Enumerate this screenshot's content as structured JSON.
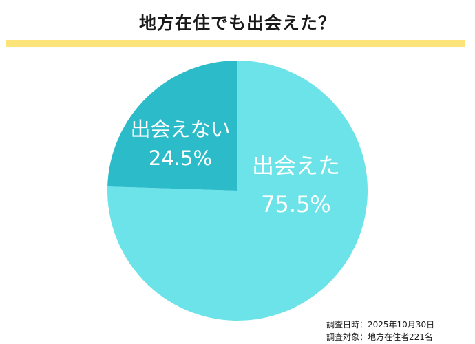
{
  "header": {
    "title": "地方在住でも出会えた？"
  },
  "chart_data": {
    "type": "pie",
    "title": "地方在住でも出会えた？",
    "slices": [
      {
        "label": "出会えた",
        "value": 75.5,
        "value_label": "75.5%",
        "color": "#6ce3e8"
      },
      {
        "label": "出会えない",
        "value": 24.5,
        "value_label": "24.5%",
        "color": "#2cbcc9"
      }
    ],
    "start_at": "top, clockwise"
  },
  "footer": {
    "survey_date": "調査日時：2025年10月30日",
    "survey_target": "調査対象：地方在住者221名"
  },
  "colors": {
    "accent_bar": "#fce37a",
    "slice_large": "#6ce3e8",
    "slice_small": "#2cbcc9",
    "label_text": "#ffffff"
  }
}
